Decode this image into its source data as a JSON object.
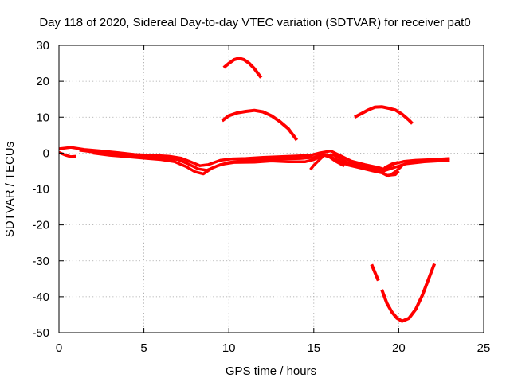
{
  "chart_data": {
    "type": "scatter",
    "title": "Day 118 of 2020, Sidereal Day-to-day VTEC variation (SDTVAR) for receiver pat0",
    "xlabel": "GPS time / hours",
    "ylabel": "SDTVAR / TECUs",
    "xlim": [
      0,
      25
    ],
    "ylim": [
      -50,
      30
    ],
    "xticks": [
      0,
      5,
      10,
      15,
      20,
      25
    ],
    "yticks": [
      -50,
      -40,
      -30,
      -20,
      -10,
      0,
      10,
      20,
      30
    ],
    "xtick_labels": [
      "0",
      "5",
      "10",
      "15",
      "20",
      "25"
    ],
    "ytick_labels": [
      "-50",
      "-40",
      "-30",
      "-20",
      "-10",
      "0",
      "10",
      "20",
      "30"
    ],
    "grid": true,
    "color": "#ff0000",
    "series": [
      {
        "name": "main-band-upper",
        "thickness": 3.5,
        "points": [
          [
            0,
            1.2
          ],
          [
            0.7,
            1.6
          ],
          [
            1.5,
            1.0
          ],
          [
            2.5,
            0.6
          ],
          [
            3.5,
            0.1
          ],
          [
            4.5,
            -0.4
          ],
          [
            5.5,
            -0.6
          ],
          [
            6.5,
            -0.9
          ],
          [
            7.2,
            -1.4
          ],
          [
            7.8,
            -2.5
          ],
          [
            8.3,
            -3.5
          ],
          [
            8.8,
            -3.2
          ],
          [
            9.5,
            -2.0
          ],
          [
            10.2,
            -1.6
          ],
          [
            11.0,
            -1.5
          ],
          [
            12.0,
            -1.2
          ],
          [
            13.0,
            -1.0
          ],
          [
            14.0,
            -0.8
          ],
          [
            14.8,
            -0.6
          ],
          [
            15.3,
            0.0
          ],
          [
            16.0,
            0.6
          ],
          [
            16.6,
            -0.8
          ],
          [
            17.2,
            -2.2
          ],
          [
            18.0,
            -3.2
          ],
          [
            18.8,
            -4.0
          ],
          [
            19.2,
            -4.6
          ],
          [
            19.7,
            -3.0
          ],
          [
            20.3,
            -2.3
          ],
          [
            21.0,
            -2.0
          ],
          [
            22.0,
            -1.8
          ],
          [
            23.0,
            -1.5
          ]
        ]
      },
      {
        "name": "main-band-lower",
        "thickness": 3.5,
        "points": [
          [
            2.0,
            0.0
          ],
          [
            3.0,
            -0.6
          ],
          [
            4.0,
            -1.0
          ],
          [
            5.0,
            -1.4
          ],
          [
            6.0,
            -1.8
          ],
          [
            6.8,
            -2.4
          ],
          [
            7.5,
            -3.8
          ],
          [
            8.0,
            -5.2
          ],
          [
            8.5,
            -5.8
          ],
          [
            9.0,
            -4.2
          ],
          [
            9.5,
            -3.2
          ],
          [
            10.3,
            -2.6
          ],
          [
            11.5,
            -2.5
          ],
          [
            12.5,
            -2.2
          ],
          [
            13.5,
            -2.4
          ],
          [
            14.5,
            -2.4
          ],
          [
            15.0,
            -1.8
          ],
          [
            15.6,
            -0.6
          ],
          [
            16.2,
            -1.5
          ],
          [
            17.0,
            -3.3
          ],
          [
            17.8,
            -4.2
          ],
          [
            18.5,
            -5.0
          ],
          [
            19.0,
            -5.5
          ],
          [
            19.4,
            -6.4
          ],
          [
            19.8,
            -5.2
          ],
          [
            20.2,
            -3.5
          ]
        ]
      },
      {
        "name": "main-band-mid",
        "thickness": 3.5,
        "points": [
          [
            1.2,
            0.8
          ],
          [
            2.2,
            0.2
          ],
          [
            3.2,
            -0.2
          ],
          [
            4.2,
            -0.8
          ],
          [
            5.2,
            -1.0
          ],
          [
            6.2,
            -1.3
          ],
          [
            7.0,
            -1.8
          ],
          [
            7.6,
            -3.0
          ],
          [
            8.2,
            -4.4
          ],
          [
            8.7,
            -4.8
          ],
          [
            9.3,
            -3.6
          ],
          [
            10.0,
            -2.6
          ],
          [
            11.0,
            -2.0
          ],
          [
            12.2,
            -1.8
          ],
          [
            13.2,
            -1.6
          ],
          [
            14.2,
            -1.5
          ],
          [
            15.0,
            -1.2
          ],
          [
            15.5,
            -0.4
          ],
          [
            16.2,
            -0.6
          ],
          [
            17.0,
            -2.6
          ],
          [
            17.8,
            -3.6
          ],
          [
            18.6,
            -4.4
          ],
          [
            19.1,
            -5.0
          ],
          [
            19.6,
            -4.2
          ],
          [
            20.4,
            -3.0
          ],
          [
            21.5,
            -2.4
          ],
          [
            23.0,
            -2.0
          ]
        ]
      },
      {
        "name": "start-dip",
        "thickness": 3.5,
        "points": [
          [
            0.0,
            0.2
          ],
          [
            0.4,
            -0.6
          ],
          [
            0.7,
            -1.0
          ],
          [
            1.0,
            -0.9
          ]
        ]
      },
      {
        "name": "drop-15h",
        "thickness": 3.5,
        "points": [
          [
            15.6,
            -0.6
          ],
          [
            15.3,
            -2.0
          ],
          [
            15.0,
            -3.4
          ],
          [
            14.8,
            -4.6
          ]
        ]
      },
      {
        "name": "drop-16h",
        "thickness": 3.5,
        "points": [
          [
            15.9,
            -1.0
          ],
          [
            16.3,
            -2.3
          ],
          [
            16.8,
            -3.6
          ]
        ]
      },
      {
        "name": "curl-19h",
        "thickness": 3.5,
        "points": [
          [
            20.0,
            -2.5
          ],
          [
            19.6,
            -3.0
          ],
          [
            19.2,
            -4.0
          ],
          [
            19.0,
            -5.2
          ],
          [
            19.3,
            -6.2
          ],
          [
            19.8,
            -6.0
          ],
          [
            20.0,
            -5.0
          ]
        ]
      },
      {
        "name": "arc-10h-upper",
        "thickness": 4,
        "points": [
          [
            9.7,
            23.8
          ],
          [
            10.0,
            25.0
          ],
          [
            10.3,
            26.0
          ],
          [
            10.6,
            26.4
          ],
          [
            10.9,
            26.0
          ],
          [
            11.2,
            25.0
          ],
          [
            11.5,
            23.5
          ],
          [
            11.9,
            21.0
          ]
        ]
      },
      {
        "name": "arc-10h-lower",
        "thickness": 4,
        "points": [
          [
            9.6,
            9.0
          ],
          [
            10.0,
            10.4
          ],
          [
            10.5,
            11.2
          ],
          [
            11.0,
            11.6
          ],
          [
            11.5,
            11.9
          ],
          [
            12.0,
            11.5
          ],
          [
            12.5,
            10.4
          ],
          [
            13.0,
            8.8
          ],
          [
            13.5,
            6.8
          ],
          [
            14.0,
            3.6
          ]
        ]
      },
      {
        "name": "arc-18h",
        "thickness": 4,
        "points": [
          [
            17.4,
            10.0
          ],
          [
            17.8,
            11.0
          ],
          [
            18.2,
            12.0
          ],
          [
            18.6,
            12.8
          ],
          [
            19.0,
            12.9
          ],
          [
            19.4,
            12.5
          ],
          [
            19.8,
            12.0
          ],
          [
            20.2,
            10.8
          ],
          [
            20.6,
            9.2
          ],
          [
            20.8,
            8.2
          ]
        ]
      },
      {
        "name": "valley-20h-left",
        "thickness": 4,
        "points": [
          [
            18.4,
            -31.0
          ],
          [
            18.8,
            -35.5
          ]
        ]
      },
      {
        "name": "valley-20h",
        "thickness": 4,
        "points": [
          [
            19.0,
            -38.0
          ],
          [
            19.3,
            -41.8
          ],
          [
            19.6,
            -44.3
          ],
          [
            19.9,
            -46.0
          ],
          [
            20.2,
            -46.8
          ],
          [
            20.6,
            -46.0
          ],
          [
            21.0,
            -43.5
          ],
          [
            21.4,
            -39.5
          ],
          [
            21.8,
            -34.5
          ],
          [
            22.1,
            -30.8
          ]
        ]
      }
    ]
  }
}
